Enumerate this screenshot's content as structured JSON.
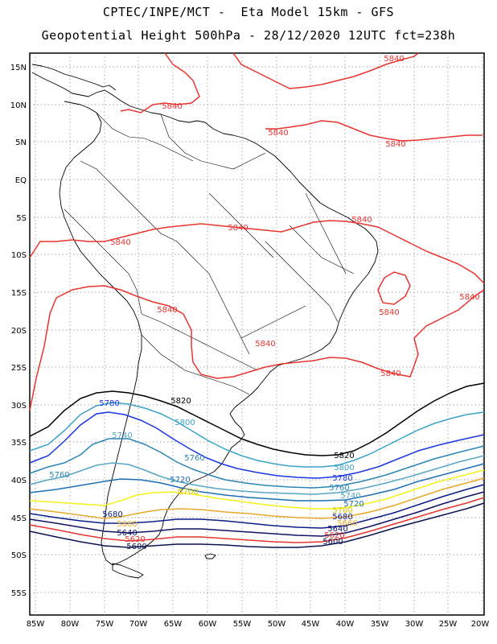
{
  "header": {
    "line1": "CPTEC/INPE/MCT -  Eta Model 15km - GFS",
    "line2": "Geopotential Height 500hPa - 28/12/2020 12UTC fct=238h"
  },
  "axes": {
    "lat_labels": [
      "15N",
      "10N",
      "5N",
      "EQ",
      "5S",
      "10S",
      "15S",
      "20S",
      "25S",
      "30S",
      "35S",
      "40S",
      "45S",
      "50S",
      "55S"
    ],
    "lon_labels": [
      "85W",
      "80W",
      "75W",
      "70W",
      "65W",
      "60W",
      "55W",
      "50W",
      "45W",
      "40W",
      "35W",
      "30W",
      "25W",
      "20W"
    ]
  },
  "colors": {
    "c5840": "#e8342f",
    "c5820": "#000000",
    "c5800": "#3aa3c8",
    "c5780": "#1a37e0",
    "c5760": "#2b86b5",
    "c5740": "#58a6c4",
    "c5720": "#1f6fb8",
    "c5700": "#f2f21a",
    "c5680": "#e9a92a",
    "c5660": "#0a1e8a",
    "c5640": "#111166",
    "c5620": "#e8342f",
    "c5600": "#0b1450"
  },
  "contour_labels": {
    "l5840a": "5840",
    "l5840b": "5840",
    "l5840c": "5840",
    "l5840d": "5840",
    "l5840e": "5840",
    "l5840f": "5840",
    "l5840g": "5840",
    "l5840h": "5840",
    "l5840i": "5840",
    "l5840j": "5840",
    "l5840k": "5840",
    "l5840l": "5840",
    "l5820a": "5820",
    "l5820b": "5820",
    "l5800a": "5800",
    "l5800b": "5800",
    "l5780a": "5780",
    "l5780b": "5780",
    "l5760a": "5760",
    "l5760b": "5760",
    "l5760c": "5760",
    "l5740a": "5740",
    "l5740b": "5740",
    "l5720a": "5720",
    "l5720b": "5720",
    "l5700a": "5700",
    "l5700b": "5700",
    "l5680a": "5680",
    "l5680b": "5680",
    "l5660a": "5660",
    "l5660b": "5660",
    "l5640a": "5640",
    "l5640b": "5640",
    "l5620a": "5620",
    "l5620b": "5620",
    "l5600a": "5600",
    "l5600b": "5600"
  }
}
